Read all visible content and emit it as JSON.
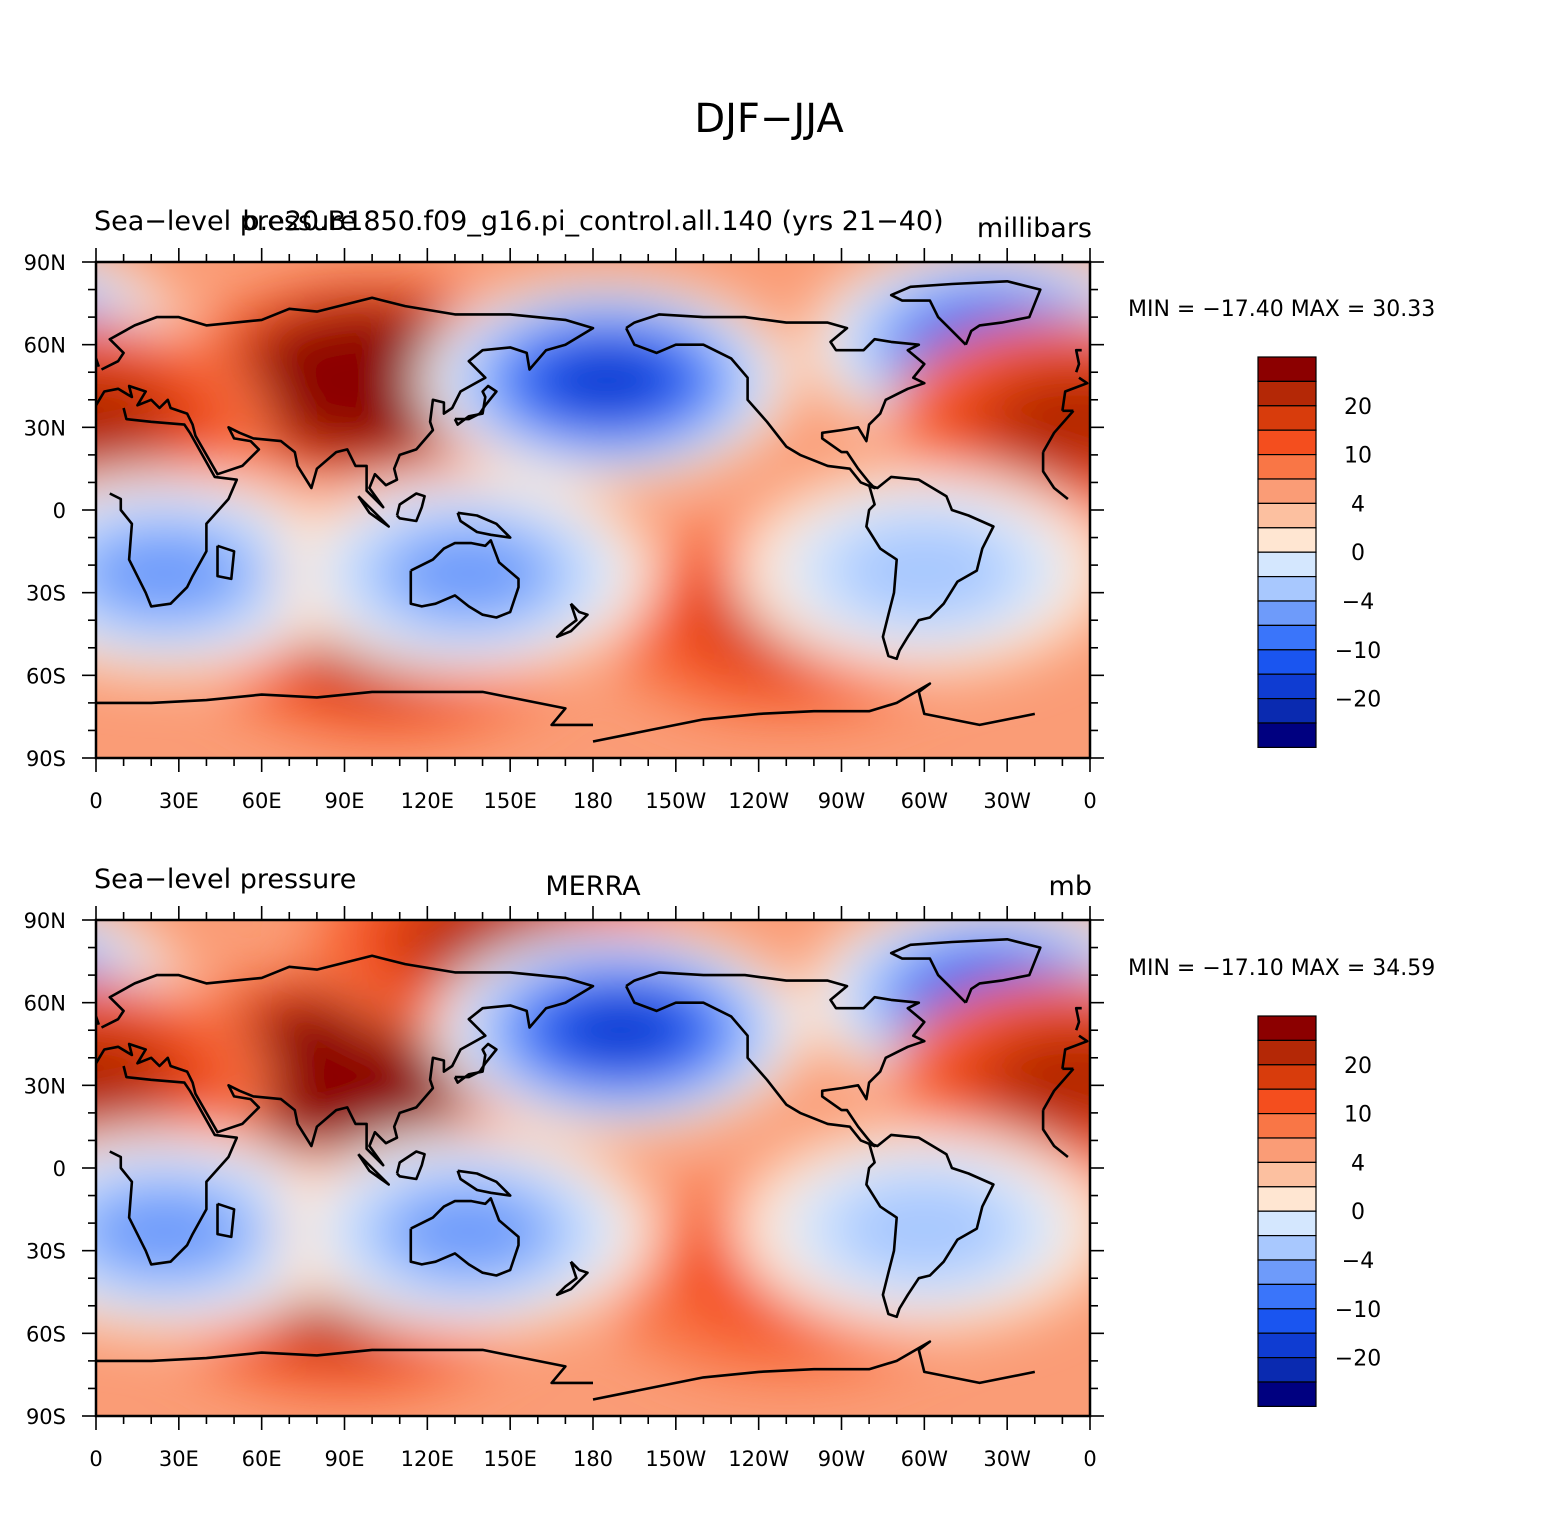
{
  "figure": {
    "title": "DJF−JJA"
  },
  "colorbar": {
    "colors": [
      "#000080",
      "#0a2ab0",
      "#0f3cd2",
      "#1a55f0",
      "#3a75fa",
      "#6e9bfa",
      "#a8c8fe",
      "#d4e7fe",
      "#ffe6d2",
      "#fcc0a0",
      "#fa9c76",
      "#f97646",
      "#f44e1e",
      "#d83c0c",
      "#b42806",
      "#8c0000"
    ],
    "labels": [
      "−20",
      "−10",
      "−4",
      "0",
      "4",
      "10",
      "20"
    ]
  },
  "chart_data": [
    {
      "type": "heatmap",
      "title_left": "Sea−level pressure",
      "title_center": "b.e20.B1850.f09_g16.pi_control.all.140 (yrs 21−40)",
      "title_right": "millibars",
      "stat_text": "MIN = −17.40  MAX =   30.33",
      "min": -17.4,
      "max": 30.33,
      "xlim": [
        0,
        360
      ],
      "ylim": [
        -90,
        90
      ],
      "x_ticks": [
        "0",
        "30E",
        "60E",
        "90E",
        "120E",
        "150E",
        "180",
        "150W",
        "120W",
        "90W",
        "60W",
        "30W",
        "0"
      ],
      "y_ticks": [
        "90N",
        "60N",
        "30N",
        "0",
        "30S",
        "60S",
        "90S"
      ],
      "features": [
        {
          "name": "siberian-high",
          "lon": 100,
          "lat": 47,
          "value": 28
        },
        {
          "name": "aleutian-low",
          "lon": 185,
          "lat": 47,
          "value": -17
        },
        {
          "name": "icelandic-low",
          "lon": 325,
          "lat": 60,
          "value": -13
        },
        {
          "name": "azores-high",
          "lon": 355,
          "lat": 32,
          "value": 8
        },
        {
          "name": "south-indian-high",
          "lon": 105,
          "lat": -47,
          "value": 9
        },
        {
          "name": "south-pacific-high",
          "lon": 250,
          "lat": -40,
          "value": 7
        },
        {
          "name": "southern-africa-low",
          "lon": 25,
          "lat": -23,
          "value": -9
        },
        {
          "name": "australia-low",
          "lon": 135,
          "lat": -23,
          "value": -9
        },
        {
          "name": "south-america-low",
          "lon": 300,
          "lat": -22,
          "value": -7
        }
      ]
    },
    {
      "type": "heatmap",
      "title_left": "Sea−level pressure",
      "title_center": "MERRA",
      "title_right": "mb",
      "stat_text": "MIN = −17.10  MAX =   34.59",
      "min": -17.1,
      "max": 34.59,
      "xlim": [
        0,
        360
      ],
      "ylim": [
        -90,
        90
      ],
      "x_ticks": [
        "0",
        "30E",
        "60E",
        "90E",
        "120E",
        "150E",
        "180",
        "150W",
        "120W",
        "90W",
        "60W",
        "30W",
        "0"
      ],
      "y_ticks": [
        "90N",
        "60N",
        "30N",
        "0",
        "30S",
        "60S",
        "90S"
      ],
      "features": [
        {
          "name": "siberian-high",
          "lon": 90,
          "lat": 35,
          "value": 30
        },
        {
          "name": "arctic-high",
          "lon": 145,
          "lat": 82,
          "value": 8
        },
        {
          "name": "aleutian-low",
          "lon": 190,
          "lat": 50,
          "value": -17
        },
        {
          "name": "icelandic-low",
          "lon": 325,
          "lat": 62,
          "value": -12
        },
        {
          "name": "azores-high",
          "lon": 355,
          "lat": 32,
          "value": 8
        },
        {
          "name": "south-indian-high",
          "lon": 90,
          "lat": -47,
          "value": 8
        },
        {
          "name": "south-pacific-high",
          "lon": 250,
          "lat": -40,
          "value": 4
        },
        {
          "name": "southern-africa-low",
          "lon": 25,
          "lat": -23,
          "value": -9
        },
        {
          "name": "australia-low",
          "lon": 135,
          "lat": -23,
          "value": -9
        },
        {
          "name": "south-america-low",
          "lon": 300,
          "lat": -22,
          "value": -7
        }
      ]
    }
  ]
}
